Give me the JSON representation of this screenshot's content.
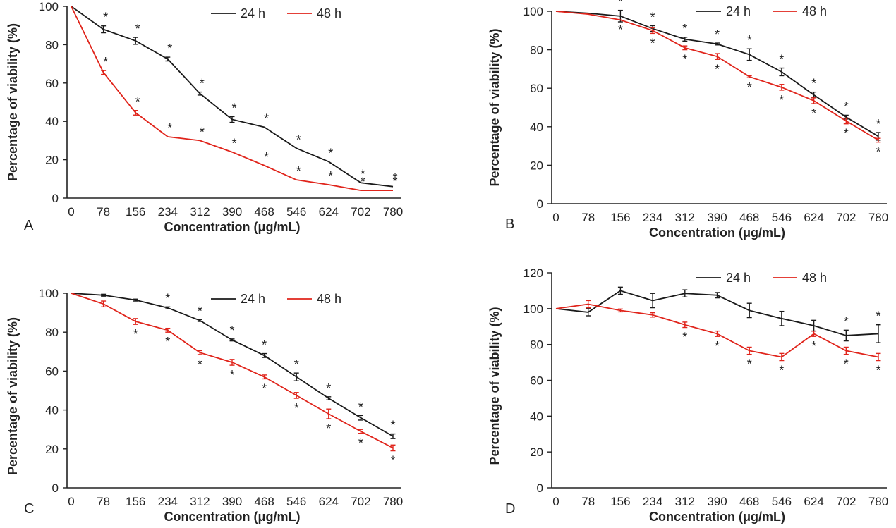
{
  "figure": {
    "colors": {
      "24 h": "#1a1a1a",
      "48 h": "#e0241b"
    },
    "legend_placement": "top-right"
  },
  "chart_data": [
    {
      "panel": "A",
      "type": "line",
      "categories": [
        "0",
        "78",
        "156",
        "234",
        "312",
        "390",
        "468",
        "546",
        "624",
        "702",
        "780"
      ],
      "xlabel": "Concentration (μg/mL)",
      "ylabel": "Percentage of viability (%)",
      "ylim": [
        0,
        100
      ],
      "yticks": [
        0,
        20,
        40,
        60,
        80,
        100
      ],
      "grid": false,
      "series": [
        {
          "name": "24 h",
          "values": [
            100,
            88,
            82,
            72.5,
            54.5,
            41,
            37,
            26,
            19,
            8,
            6
          ],
          "errors": [
            0,
            1.8,
            1.8,
            1,
            0.8,
            1.5,
            0,
            0,
            0,
            0,
            0
          ],
          "stars": [
            "",
            "*",
            "*",
            "*",
            "*",
            "*",
            "*",
            "*",
            "*",
            "*",
            "*"
          ]
        },
        {
          "name": "48 h",
          "values": [
            100,
            65.5,
            44.5,
            32,
            30,
            24,
            17,
            9.5,
            7,
            4,
            4
          ],
          "errors": [
            0,
            1,
            1.2,
            0,
            0,
            0,
            0,
            0,
            0,
            0,
            0
          ],
          "stars": [
            "",
            "*",
            "*",
            "*",
            "*",
            "*",
            "*",
            "*",
            "*",
            "*",
            "*"
          ]
        }
      ]
    },
    {
      "panel": "B",
      "type": "line",
      "categories": [
        "0",
        "78",
        "156",
        "234",
        "312",
        "390",
        "468",
        "546",
        "624",
        "702",
        "780"
      ],
      "xlabel": "Concentration (μg/mL)",
      "ylabel": "Percentage of viability (%)",
      "ylim": [
        0,
        100
      ],
      "yticks": [
        0,
        20,
        40,
        60,
        80,
        100
      ],
      "grid": false,
      "series": [
        {
          "name": "24 h",
          "values": [
            100,
            99,
            97.5,
            91,
            85.5,
            83,
            77.5,
            68.5,
            56.5,
            45,
            35
          ],
          "errors": [
            0,
            0,
            3,
            1.5,
            1,
            0.5,
            3,
            2,
            1.5,
            1,
            2
          ],
          "stars": [
            "",
            "",
            "*",
            "*",
            "*",
            "*",
            "*",
            "*",
            "*",
            "*",
            "*"
          ]
        },
        {
          "name": "48 h",
          "values": [
            100,
            98.5,
            95.5,
            90,
            81,
            76.5,
            66,
            60.5,
            53.5,
            43,
            33
          ],
          "errors": [
            0,
            0,
            0,
            1.5,
            1,
            1.5,
            0.5,
            1.5,
            1.5,
            1.5,
            1
          ],
          "stars": [
            "",
            "",
            "*",
            "*",
            "*",
            "*",
            "*",
            "*",
            "*",
            "*",
            "*"
          ]
        }
      ]
    },
    {
      "panel": "C",
      "type": "line",
      "categories": [
        "0",
        "78",
        "156",
        "234",
        "312",
        "390",
        "468",
        "546",
        "624",
        "702",
        "780"
      ],
      "xlabel": "Concentration (μg/mL)",
      "ylabel": "Percentage of viability (%)",
      "ylim": [
        0,
        100
      ],
      "yticks": [
        0,
        20,
        40,
        60,
        80,
        100
      ],
      "grid": false,
      "series": [
        {
          "name": "24 h",
          "values": [
            100,
            99,
            96.5,
            92.5,
            86,
            76,
            68,
            57,
            46,
            36,
            26.5
          ],
          "errors": [
            0,
            0.5,
            0.5,
            0.5,
            0.5,
            0.5,
            1,
            2,
            0.8,
            1.2,
            1.2
          ],
          "stars": [
            "",
            "",
            "",
            "*",
            "*",
            "*",
            "*",
            "*",
            "*",
            "*",
            "*"
          ]
        },
        {
          "name": "48 h",
          "values": [
            100,
            94.5,
            85.5,
            81,
            69.5,
            64.5,
            57,
            47.5,
            38,
            29,
            20.5
          ],
          "errors": [
            0,
            1.5,
            1.5,
            1,
            1,
            1.5,
            1,
            1.5,
            2.5,
            1,
            1.5
          ],
          "stars": [
            "",
            "",
            "*",
            "*",
            "*",
            "*",
            "*",
            "*",
            "*",
            "*",
            "*"
          ]
        }
      ]
    },
    {
      "panel": "D",
      "type": "line",
      "categories": [
        "0",
        "78",
        "156",
        "234",
        "312",
        "390",
        "468",
        "546",
        "624",
        "702",
        "780"
      ],
      "xlabel": "Concentration (μg/mL)",
      "ylabel": "Percentage of viability (%)",
      "ylim": [
        0,
        120
      ],
      "yticks": [
        0,
        20,
        40,
        60,
        80,
        100,
        120
      ],
      "grid": false,
      "series": [
        {
          "name": "24 h",
          "values": [
            100,
            98,
            110,
            104.5,
            108.5,
            107.5,
            99,
            94.5,
            90.5,
            85,
            86
          ],
          "errors": [
            0,
            2,
            2,
            4,
            2,
            1.5,
            4,
            4,
            3,
            3,
            5
          ],
          "stars": [
            "",
            "",
            "",
            "",
            "",
            "",
            "",
            "",
            "",
            "*",
            "*"
          ]
        },
        {
          "name": "48 h",
          "values": [
            100,
            102.5,
            99,
            96.5,
            91,
            86,
            76.5,
            73,
            86,
            76.5,
            73
          ],
          "errors": [
            0,
            2,
            0.8,
            1.2,
            1.5,
            1.5,
            2,
            2,
            1.5,
            2,
            2
          ],
          "stars": [
            "",
            "",
            "",
            "",
            "*",
            "*",
            "*",
            "*",
            "*",
            "*",
            "*"
          ]
        }
      ]
    }
  ]
}
